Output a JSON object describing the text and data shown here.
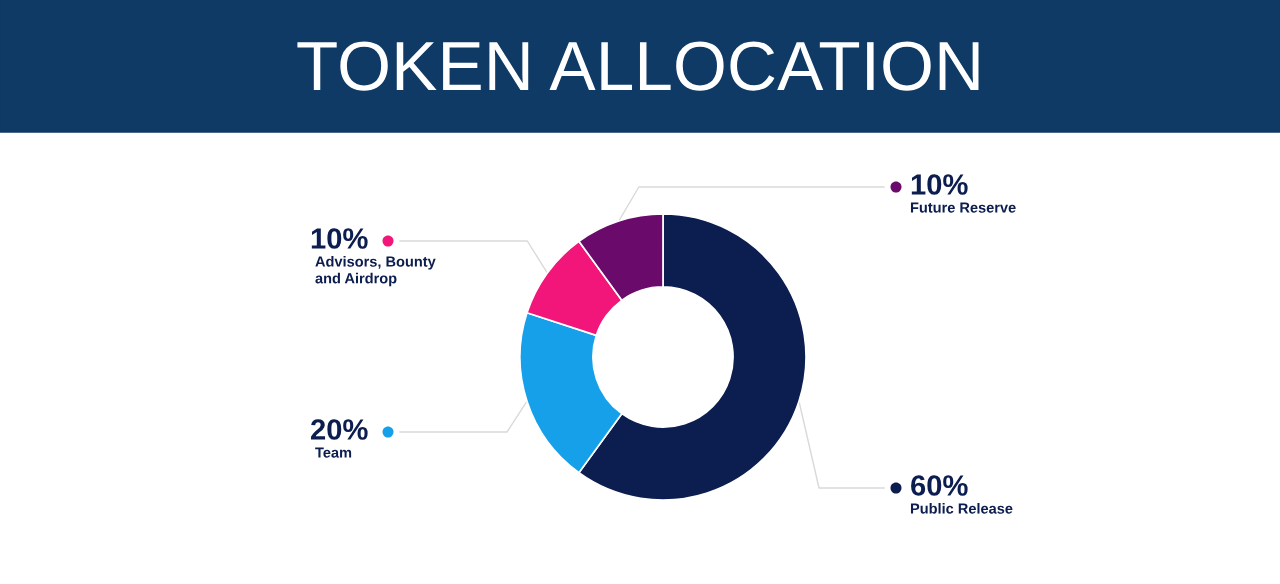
{
  "chart_data": {
    "type": "donut",
    "title": "TOKEN ALLOCATION",
    "categories": [
      "Public Release",
      "Team",
      "Advisors, Bounty\nand Airdrop",
      "Future Reserve"
    ],
    "values": [
      60,
      20,
      10,
      10
    ],
    "value_labels": [
      "60%",
      "20%",
      "10%",
      "10%"
    ],
    "colors": [
      "#0c1d4f",
      "#17a0ea",
      "#f2157a",
      "#6a0a6b"
    ],
    "legend": true
  }
}
